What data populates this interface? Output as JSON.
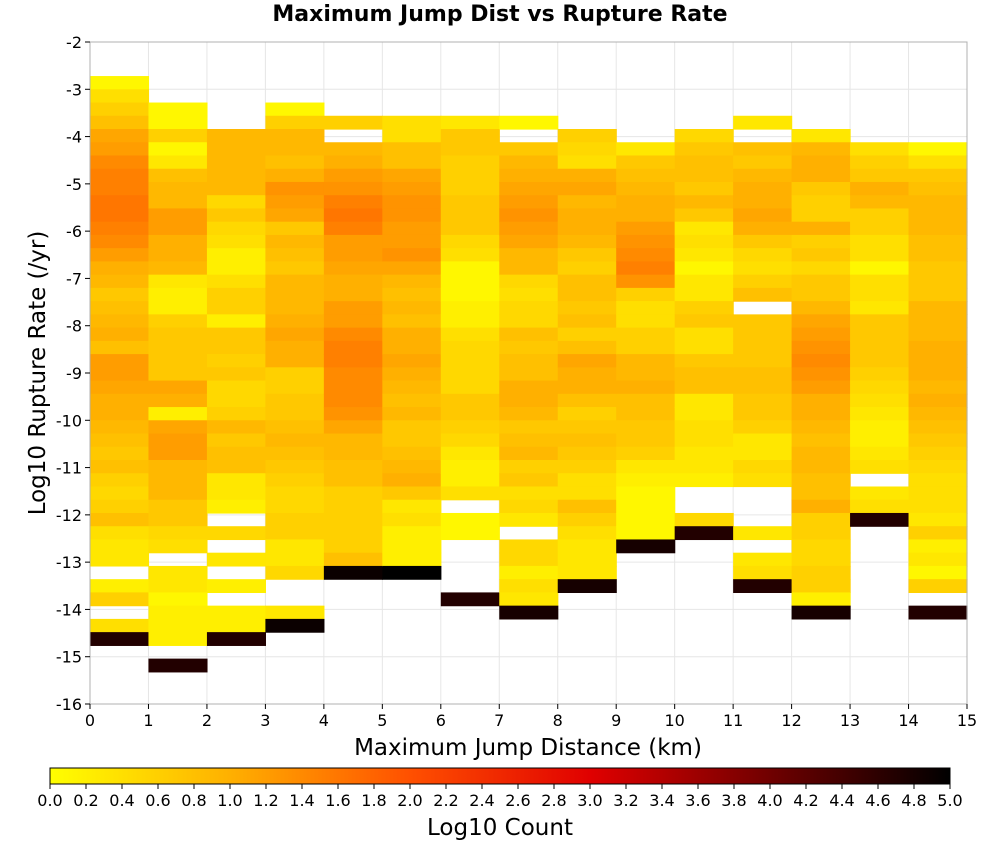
{
  "chart_data": {
    "type": "heatmap",
    "title": "Maximum Jump Dist vs Rupture Rate",
    "xlabel": "Maximum Jump Distance (km)",
    "ylabel": "Log10 Rupture Rate (/yr)",
    "xlim": [
      0,
      15
    ],
    "ylim": [
      -16,
      -2
    ],
    "x_ticks": [
      "0",
      "1",
      "2",
      "3",
      "4",
      "5",
      "6",
      "7",
      "8",
      "9",
      "10",
      "11",
      "12",
      "13",
      "14",
      "15"
    ],
    "y_ticks": [
      "-2",
      "-3",
      "-4",
      "-5",
      "-6",
      "-7",
      "-8",
      "-9",
      "-10",
      "-11",
      "-12",
      "-13",
      "-14",
      "-15",
      "-16"
    ],
    "x_bin_width": 1,
    "y_bin_width": 0.28,
    "grid": true,
    "colorbar": {
      "label": "Log10 Count",
      "min": 0.0,
      "max": 5.0,
      "ticks": [
        "0.0",
        "0.2",
        "0.4",
        "0.6",
        "0.8",
        "1.0",
        "1.2",
        "1.4",
        "1.6",
        "1.8",
        "2.0",
        "2.2",
        "2.4",
        "2.6",
        "2.8",
        "3.0",
        "3.2",
        "3.4",
        "3.6",
        "3.8",
        "4.0",
        "4.2",
        "4.4",
        "4.6",
        "4.8",
        "5.0"
      ],
      "colors": [
        "#ffff00",
        "#ffb000",
        "#ff5000",
        "#e00000",
        "#700000",
        "#000000"
      ]
    },
    "columns": [
      {
        "x": 0.5,
        "y_start": -2.72,
        "values": [
          0.1,
          0.4,
          0.6,
          0.8,
          1.1,
          1.2,
          1.4,
          1.5,
          1.5,
          1.6,
          1.6,
          1.5,
          1.4,
          1.2,
          1.0,
          0.9,
          0.7,
          0.8,
          0.9,
          1.0,
          0.8,
          1.2,
          1.2,
          1.1,
          1.0,
          1.0,
          0.9,
          0.8,
          0.7,
          0.8,
          0.6,
          0.5,
          0.6,
          0.8,
          0.4,
          0.3,
          0.3,
          null,
          0.2,
          0.6,
          null,
          0.4,
          4.7
        ]
      },
      {
        "x": 1.5,
        "y_start": -3.28,
        "values": [
          0.1,
          0.1,
          0.6,
          0.1,
          0.3,
          0.8,
          0.9,
          0.9,
          1.2,
          1.2,
          1.0,
          1.0,
          0.9,
          0.3,
          0.2,
          0.2,
          0.6,
          0.7,
          0.7,
          0.7,
          0.7,
          1.1,
          1.0,
          0.2,
          1.1,
          1.2,
          1.2,
          0.9,
          0.9,
          0.9,
          0.7,
          0.7,
          0.5,
          0.4,
          null,
          0.3,
          0.3,
          0.1,
          0.2,
          0.2,
          0.2,
          null,
          4.7
        ]
      },
      {
        "x": 2.5,
        "y_start": -3.84,
        "values": [
          0.9,
          0.9,
          0.9,
          0.9,
          0.9,
          0.5,
          0.7,
          0.5,
          0.4,
          0.2,
          0.2,
          0.4,
          0.6,
          0.6,
          0.2,
          0.7,
          0.7,
          0.6,
          0.7,
          0.5,
          0.5,
          0.6,
          0.9,
          0.7,
          0.8,
          0.8,
          0.3,
          0.3,
          0.2,
          null,
          0.5,
          null,
          0.3,
          null,
          0.2,
          null,
          0.2,
          0.2,
          4.7
        ]
      },
      {
        "x": 3.5,
        "y_start": -3.28,
        "values": [
          0.1,
          0.6,
          0.9,
          0.9,
          0.8,
          1.0,
          1.3,
          1.2,
          1.1,
          0.7,
          0.9,
          0.8,
          0.7,
          0.9,
          0.9,
          0.9,
          1.0,
          1.1,
          1.0,
          1.0,
          0.6,
          0.6,
          0.7,
          0.7,
          0.8,
          0.9,
          0.8,
          0.7,
          0.6,
          0.5,
          0.5,
          0.6,
          0.6,
          0.3,
          0.3,
          0.5,
          null,
          null,
          0.3,
          4.9
        ]
      },
      {
        "x": 4.5,
        "y_start": -3.56,
        "values": [
          0.6,
          null,
          0.9,
          1.0,
          1.2,
          1.3,
          1.5,
          1.6,
          1.5,
          1.2,
          1.2,
          1.1,
          1.0,
          1.0,
          1.2,
          1.2,
          1.4,
          1.5,
          1.5,
          1.4,
          1.4,
          1.4,
          1.3,
          1.1,
          0.9,
          0.9,
          0.8,
          0.8,
          0.6,
          0.6,
          0.6,
          0.6,
          0.6,
          0.8,
          4.9
        ]
      },
      {
        "x": 5.5,
        "y_start": -3.56,
        "values": [
          0.4,
          0.4,
          0.8,
          0.8,
          1.1,
          1.2,
          1.3,
          1.3,
          1.2,
          1.2,
          1.3,
          1.1,
          0.9,
          0.8,
          0.9,
          0.8,
          1.0,
          1.0,
          1.1,
          1.0,
          0.9,
          0.8,
          0.9,
          0.7,
          0.7,
          0.8,
          0.9,
          1.0,
          0.7,
          0.3,
          0.4,
          0.2,
          0.2,
          0.2,
          5.0
        ]
      },
      {
        "x": 6.5,
        "y_start": -3.56,
        "values": [
          0.3,
          0.7,
          0.7,
          0.6,
          0.6,
          0.6,
          0.7,
          0.7,
          0.7,
          0.5,
          0.4,
          0.1,
          0.1,
          0.1,
          0.2,
          0.2,
          0.4,
          0.5,
          0.5,
          0.5,
          0.5,
          0.7,
          0.7,
          0.6,
          0.5,
          0.3,
          0.2,
          0.2,
          0.4,
          null,
          0.1,
          0.1,
          null,
          null,
          null,
          null,
          4.7
        ]
      },
      {
        "x": 7.5,
        "y_start": -3.56,
        "values": [
          0.1,
          null,
          0.7,
          0.9,
          1.0,
          1.1,
          1.2,
          1.3,
          1.2,
          1.1,
          0.9,
          0.9,
          0.5,
          0.4,
          0.5,
          0.5,
          0.8,
          0.7,
          0.8,
          0.8,
          1.0,
          1.0,
          0.9,
          0.7,
          0.8,
          0.9,
          0.6,
          0.7,
          0.4,
          0.5,
          0.3,
          null,
          0.5,
          0.5,
          0.2,
          0.4,
          0.3,
          4.8
        ]
      },
      {
        "x": 8.5,
        "y_start": -3.84,
        "values": [
          0.6,
          0.5,
          0.4,
          1.0,
          1.1,
          0.9,
          1.0,
          1.0,
          0.9,
          0.7,
          0.6,
          0.8,
          0.8,
          0.7,
          0.8,
          0.6,
          0.8,
          1.1,
          1.0,
          1.0,
          0.8,
          0.6,
          0.7,
          0.8,
          0.7,
          0.6,
          0.4,
          0.4,
          0.8,
          0.6,
          0.4,
          0.3,
          0.3,
          0.3,
          4.8
        ]
      },
      {
        "x": 9.5,
        "y_start": -4.12,
        "values": [
          0.3,
          0.7,
          0.8,
          0.9,
          1.0,
          1.0,
          1.2,
          1.3,
          1.4,
          1.5,
          1.3,
          0.6,
          0.4,
          0.4,
          0.6,
          0.6,
          0.9,
          0.9,
          1.0,
          0.8,
          0.8,
          0.7,
          0.7,
          0.6,
          0.3,
          0.2,
          0.1,
          0.1,
          0.1,
          0.1,
          4.8
        ]
      },
      {
        "x": 10.5,
        "y_start": -3.84,
        "values": [
          0.5,
          0.7,
          0.8,
          0.8,
          0.7,
          0.9,
          0.7,
          0.3,
          0.4,
          0.3,
          0.1,
          0.3,
          0.3,
          0.6,
          0.7,
          0.4,
          0.4,
          0.7,
          0.8,
          0.8,
          0.3,
          0.3,
          0.4,
          0.4,
          0.3,
          0.3,
          0.2,
          null,
          null,
          0.5,
          4.7
        ]
      },
      {
        "x": 11.5,
        "y_start": -3.56,
        "values": [
          0.3,
          null,
          0.8,
          0.7,
          0.9,
          1.0,
          1.0,
          1.1,
          1.0,
          0.7,
          0.5,
          0.4,
          0.6,
          0.8,
          null,
          0.7,
          0.7,
          0.7,
          0.7,
          0.8,
          0.8,
          0.7,
          0.7,
          0.6,
          0.3,
          0.3,
          0.5,
          0.4,
          null,
          null,
          null,
          0.3,
          null,
          0.3,
          0.4,
          4.7
        ]
      },
      {
        "x": 12.5,
        "y_start": -3.84,
        "values": [
          0.3,
          0.9,
          1.0,
          1.0,
          0.7,
          0.6,
          0.6,
          1.0,
          0.6,
          0.7,
          0.5,
          0.7,
          0.7,
          0.9,
          1.1,
          1.2,
          1.3,
          1.4,
          1.3,
          1.2,
          1.0,
          1.0,
          0.9,
          0.8,
          0.9,
          0.9,
          0.8,
          0.8,
          1.0,
          0.6,
          0.6,
          0.5,
          0.5,
          0.6,
          0.6,
          0.2,
          4.8
        ]
      },
      {
        "x": 13.5,
        "y_start": -4.12,
        "values": [
          0.4,
          0.6,
          0.7,
          1.0,
          0.9,
          0.6,
          0.6,
          0.4,
          0.4,
          0.1,
          0.4,
          0.4,
          0.3,
          0.7,
          0.7,
          0.7,
          0.7,
          0.6,
          0.5,
          0.4,
          0.3,
          0.2,
          0.2,
          0.3,
          0.4,
          null,
          0.3,
          0.4,
          4.7
        ]
      },
      {
        "x": 14.5,
        "y_start": -4.12,
        "values": [
          0.1,
          0.4,
          0.7,
          0.8,
          0.9,
          0.9,
          0.9,
          0.8,
          0.8,
          0.7,
          0.7,
          0.7,
          0.9,
          0.9,
          0.9,
          1.0,
          1.0,
          1.0,
          0.9,
          1.0,
          0.9,
          0.8,
          0.7,
          0.6,
          0.5,
          0.4,
          0.4,
          0.4,
          0.3,
          0.6,
          0.2,
          0.3,
          0.1,
          0.6,
          null,
          4.7
        ]
      }
    ]
  }
}
